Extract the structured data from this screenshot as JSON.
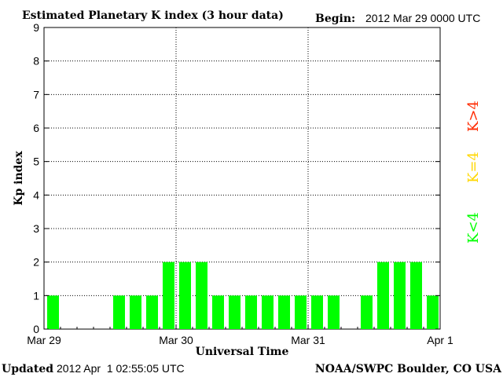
{
  "header": {
    "title": "Estimated Planetary K index (3 hour data)",
    "begin_label": "Begin:",
    "begin_value": "2012 Mar 29 0000 UTC"
  },
  "footer": {
    "updated_label": "Updated",
    "updated_value": "2012 Apr  1 02:55:05 UTC",
    "source": "NOAA/SWPC Boulder, CO USA"
  },
  "legend": {
    "items": [
      {
        "label": "K<4",
        "color": "#00ff00"
      },
      {
        "label": "K=4",
        "color": "#ffd700"
      },
      {
        "label": "K>4",
        "color": "#ff2a00"
      }
    ]
  },
  "chart_data": {
    "type": "bar",
    "title": "Estimated Planetary K index (3 hour data)",
    "xlabel": "Universal Time",
    "ylabel": "Kp index",
    "ylim": [
      0,
      9
    ],
    "yticks": [
      0,
      1,
      2,
      3,
      4,
      5,
      6,
      7,
      8,
      9
    ],
    "xlim_days": [
      0,
      3
    ],
    "xtick_labels": [
      "Mar 29",
      "Mar 30",
      "Mar 31",
      "Apr 1"
    ],
    "interval_hours": 3,
    "categories": [
      "Mar 29 00",
      "Mar 29 03",
      "Mar 29 06",
      "Mar 29 09",
      "Mar 29 12",
      "Mar 29 15",
      "Mar 29 18",
      "Mar 29 21",
      "Mar 30 00",
      "Mar 30 03",
      "Mar 30 06",
      "Mar 30 09",
      "Mar 30 12",
      "Mar 30 15",
      "Mar 30 18",
      "Mar 30 21",
      "Mar 31 00",
      "Mar 31 03",
      "Mar 31 06",
      "Mar 31 09",
      "Mar 31 12",
      "Mar 31 15",
      "Mar 31 18",
      "Mar 31 21"
    ],
    "values": [
      1,
      null,
      null,
      null,
      1,
      1,
      1,
      2,
      2,
      2,
      1,
      1,
      1,
      1,
      1,
      1,
      1,
      1,
      null,
      1,
      2,
      2,
      2,
      1
    ],
    "bar_color": "#00ff00",
    "grid": "dotted vertical at day boundaries, dotted horizontal at each integer",
    "legend_position": "right"
  }
}
